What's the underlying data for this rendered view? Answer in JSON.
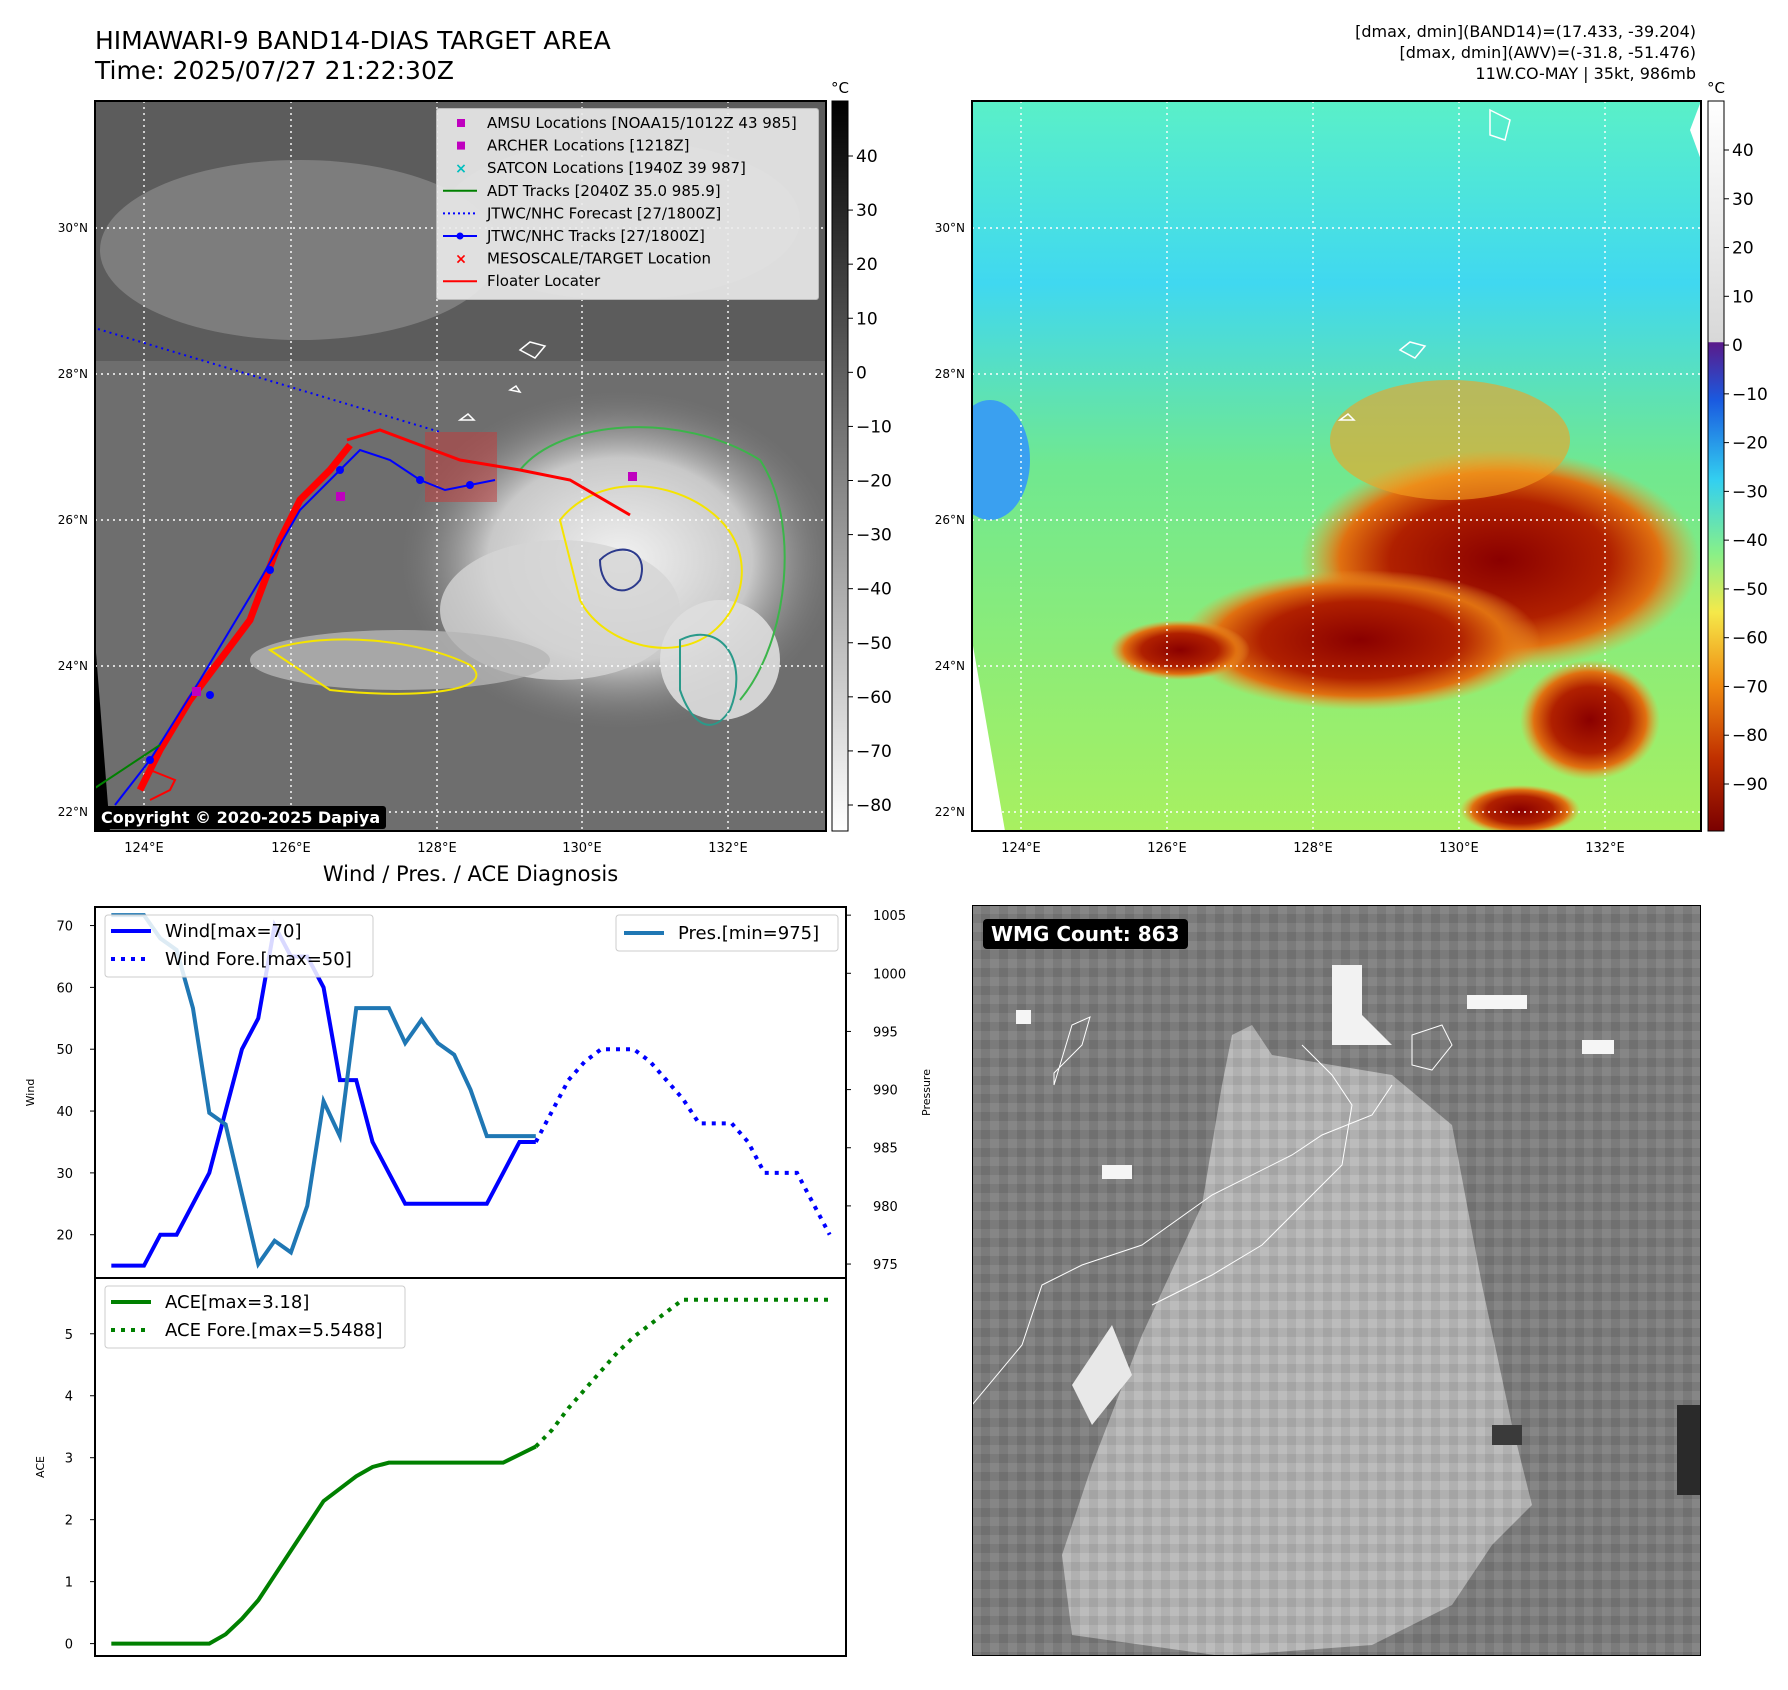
{
  "header": {
    "title_line1": "HIMAWARI-9 BAND14-DIAS TARGET AREA",
    "title_line2": "Time: 2025/07/27 21:22:30Z",
    "info_line1": "[dmax, dmin](BAND14)=(17.433, -39.204)",
    "info_line2": "[dmax, dmin](AWV)=(-31.8, -51.476)",
    "info_line3": "11W.CO-MAY | 35kt, 986mb"
  },
  "map_axes": {
    "lat_labels": [
      "30°N",
      "28°N",
      "26°N",
      "24°N",
      "22°N"
    ],
    "lon_labels": [
      "124°E",
      "126°E",
      "128°E",
      "130°E",
      "132°E"
    ]
  },
  "ir_colorbar": {
    "unit": "°C",
    "ticks": [
      "40",
      "30",
      "20",
      "10",
      "0",
      "−10",
      "−20",
      "−30",
      "−40",
      "−50",
      "−60",
      "−70",
      "−80"
    ]
  },
  "wv_colorbar": {
    "unit": "°C",
    "ticks": [
      "40",
      "30",
      "20",
      "10",
      "0",
      "−10",
      "−20",
      "−30",
      "−40",
      "−50",
      "−60",
      "−70",
      "−80",
      "−90"
    ]
  },
  "legend": {
    "items": [
      {
        "label": "AMSU Locations [NOAA15/1012Z 43 985]",
        "color": "#bf00bf",
        "marker": "square"
      },
      {
        "label": "ARCHER Locations [1218Z]",
        "color": "#bf00bf",
        "marker": "square"
      },
      {
        "label": "SATCON Locations [1940Z 39 987]",
        "color": "#00bfbf",
        "marker": "x"
      },
      {
        "label": "ADT Tracks [2040Z 35.0 985.9]",
        "color": "#008000",
        "marker": "line"
      },
      {
        "label": "JTWC/NHC Forecast [27/1800Z]",
        "color": "#0000ff",
        "marker": "dotted"
      },
      {
        "label": "JTWC/NHC Tracks [27/1800Z]",
        "color": "#0000ff",
        "marker": "line-dot"
      },
      {
        "label": "MESOSCALE/TARGET Location",
        "color": "#ff0000",
        "marker": "x"
      },
      {
        "label": "Floater Locater",
        "color": "#ff0000",
        "marker": "line"
      }
    ]
  },
  "copyright": "Copyright © 2020-2025 Dapiya",
  "wmg": {
    "label": "WMG Count: 863"
  },
  "diag": {
    "title": "Wind / Pres. / ACE Diagnosis",
    "wind_ylabel": "Wind",
    "pres_ylabel": "Pressure",
    "ace_ylabel": "ACE",
    "wind_ticks": [
      "70",
      "60",
      "50",
      "40",
      "30",
      "20"
    ],
    "pres_ticks": [
      "1005",
      "1000",
      "995",
      "990",
      "985",
      "980",
      "975"
    ],
    "ace_ticks": [
      "5",
      "4",
      "3",
      "2",
      "1",
      "0"
    ]
  },
  "chart_data": [
    {
      "type": "line",
      "title": "Wind / Pres. / ACE Diagnosis",
      "xlabel": "",
      "ylabel": "Wind",
      "y2label": "Pressure",
      "ylim": [
        13,
        73
      ],
      "y2lim": [
        973.8,
        1005.7
      ],
      "legend_placement": "top-left (Wind), top-right (Pres.)",
      "series": [
        {
          "name": "Wind[max=70]",
          "axis": "left",
          "color": "#0000ff",
          "style": "solid",
          "x": [
            0,
            1,
            2,
            3,
            4,
            5,
            6,
            7,
            8,
            9,
            10,
            11,
            12,
            13,
            14,
            15,
            16,
            17,
            18,
            19,
            20,
            21,
            22,
            23,
            24,
            25,
            26
          ],
          "values": [
            15,
            15,
            15,
            20,
            20,
            25,
            30,
            40,
            50,
            55,
            70,
            65,
            65,
            60,
            45,
            45,
            35,
            30,
            25,
            25,
            25,
            25,
            25,
            25,
            30,
            35,
            35
          ]
        },
        {
          "name": "Wind Fore.[max=50]",
          "axis": "left",
          "color": "#0000ff",
          "style": "dotted",
          "x": [
            26,
            27,
            28,
            29,
            30,
            31,
            32,
            33,
            34,
            35,
            36,
            37,
            38,
            39,
            40,
            41,
            42,
            43,
            44
          ],
          "values": [
            35,
            40,
            45,
            48,
            50,
            50,
            50,
            48,
            45,
            42,
            38,
            38,
            38,
            35,
            30,
            30,
            30,
            25,
            20
          ]
        },
        {
          "name": "Pres.[min=975]",
          "axis": "right",
          "color": "#1f77b4",
          "style": "solid",
          "x": [
            0,
            1,
            2,
            3,
            4,
            5,
            6,
            7,
            8,
            9,
            10,
            11,
            12,
            13,
            14,
            15,
            16,
            17,
            18,
            19,
            20,
            21,
            22,
            23,
            24,
            25,
            26
          ],
          "values": [
            1005,
            1005,
            1005,
            1003,
            1002,
            997,
            988,
            987,
            981,
            975,
            977,
            976,
            980,
            989,
            986,
            997,
            997,
            997,
            994,
            996,
            994,
            993,
            990,
            986,
            986,
            986,
            986
          ]
        }
      ]
    },
    {
      "type": "line",
      "xlabel": "",
      "ylabel": "ACE",
      "ylim": [
        -0.2,
        5.9
      ],
      "legend_placement": "top-left",
      "series": [
        {
          "name": "ACE[max=3.18]",
          "color": "#008000",
          "style": "solid",
          "x": [
            0,
            1,
            2,
            3,
            4,
            5,
            6,
            7,
            8,
            9,
            10,
            11,
            12,
            13,
            14,
            15,
            16,
            17,
            18,
            19,
            20,
            21,
            22,
            23,
            24,
            25,
            26
          ],
          "values": [
            0,
            0,
            0,
            0,
            0,
            0,
            0,
            0.15,
            0.4,
            0.7,
            1.1,
            1.5,
            1.9,
            2.3,
            2.5,
            2.7,
            2.85,
            2.92,
            2.92,
            2.92,
            2.92,
            2.92,
            2.92,
            2.92,
            2.92,
            3.05,
            3.18
          ]
        },
        {
          "name": "ACE Fore.[max=5.5488]",
          "color": "#008000",
          "style": "dotted",
          "x": [
            26,
            27,
            28,
            29,
            30,
            31,
            32,
            33,
            34,
            35,
            36,
            37,
            38,
            39,
            40,
            41,
            42,
            43,
            44
          ],
          "values": [
            3.18,
            3.45,
            3.8,
            4.1,
            4.4,
            4.7,
            4.95,
            5.15,
            5.35,
            5.55,
            5.55,
            5.55,
            5.55,
            5.55,
            5.55,
            5.55,
            5.55,
            5.55,
            5.55
          ]
        }
      ]
    }
  ]
}
